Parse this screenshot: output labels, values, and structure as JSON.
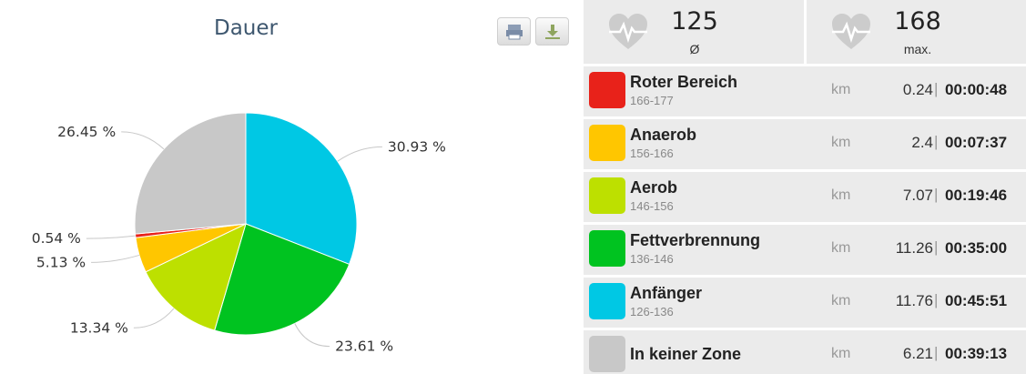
{
  "chart": {
    "title": "Dauer"
  },
  "toolbar": {
    "print_icon": "printer-icon",
    "export_icon": "download-icon"
  },
  "chart_data": {
    "type": "pie",
    "title": "Dauer",
    "slices": [
      {
        "name": "Anfänger",
        "value": 30.93,
        "label": "30.93 %",
        "color": "#00c8e4"
      },
      {
        "name": "Fettverbrennung",
        "value": 23.61,
        "label": "23.61 %",
        "color": "#00c320"
      },
      {
        "name": "Aerob",
        "value": 13.34,
        "label": "13.34 %",
        "color": "#bde000"
      },
      {
        "name": "Anaerob",
        "value": 5.13,
        "label": "5.13 %",
        "color": "#ffc600"
      },
      {
        "name": "Roter Bereich",
        "value": 0.54,
        "label": "0.54 %",
        "color": "#e8221a"
      },
      {
        "name": "In keiner Zone",
        "value": 26.45,
        "label": "26.45 %",
        "color": "#c8c8c8"
      }
    ]
  },
  "heart_rate": {
    "avg": {
      "value": "125",
      "label": "Ø",
      "icon": "heart-rate-icon"
    },
    "max": {
      "value": "168",
      "label": "max.",
      "icon": "heart-rate-icon"
    }
  },
  "zones": [
    {
      "name": "Roter Bereich",
      "range": "166-177",
      "unit": "km",
      "distance": "0.24",
      "separator": "|",
      "time": "00:00:48",
      "color": "#e8221a"
    },
    {
      "name": "Anaerob",
      "range": "156-166",
      "unit": "km",
      "distance": "2.4",
      "separator": "|",
      "time": "00:07:37",
      "color": "#ffc600"
    },
    {
      "name": "Aerob",
      "range": "146-156",
      "unit": "km",
      "distance": "7.07",
      "separator": "|",
      "time": "00:19:46",
      "color": "#bde000"
    },
    {
      "name": "Fettverbrennung",
      "range": "136-146",
      "unit": "km",
      "distance": "11.26",
      "separator": "|",
      "time": "00:35:00",
      "color": "#00c320"
    },
    {
      "name": "Anfänger",
      "range": "126-136",
      "unit": "km",
      "distance": "11.76",
      "separator": "|",
      "time": "00:45:51",
      "color": "#00c8e4"
    },
    {
      "name": "In keiner Zone",
      "range": "",
      "unit": "km",
      "distance": "6.21",
      "separator": "|",
      "time": "00:39:13",
      "color": "#c8c8c8"
    }
  ]
}
